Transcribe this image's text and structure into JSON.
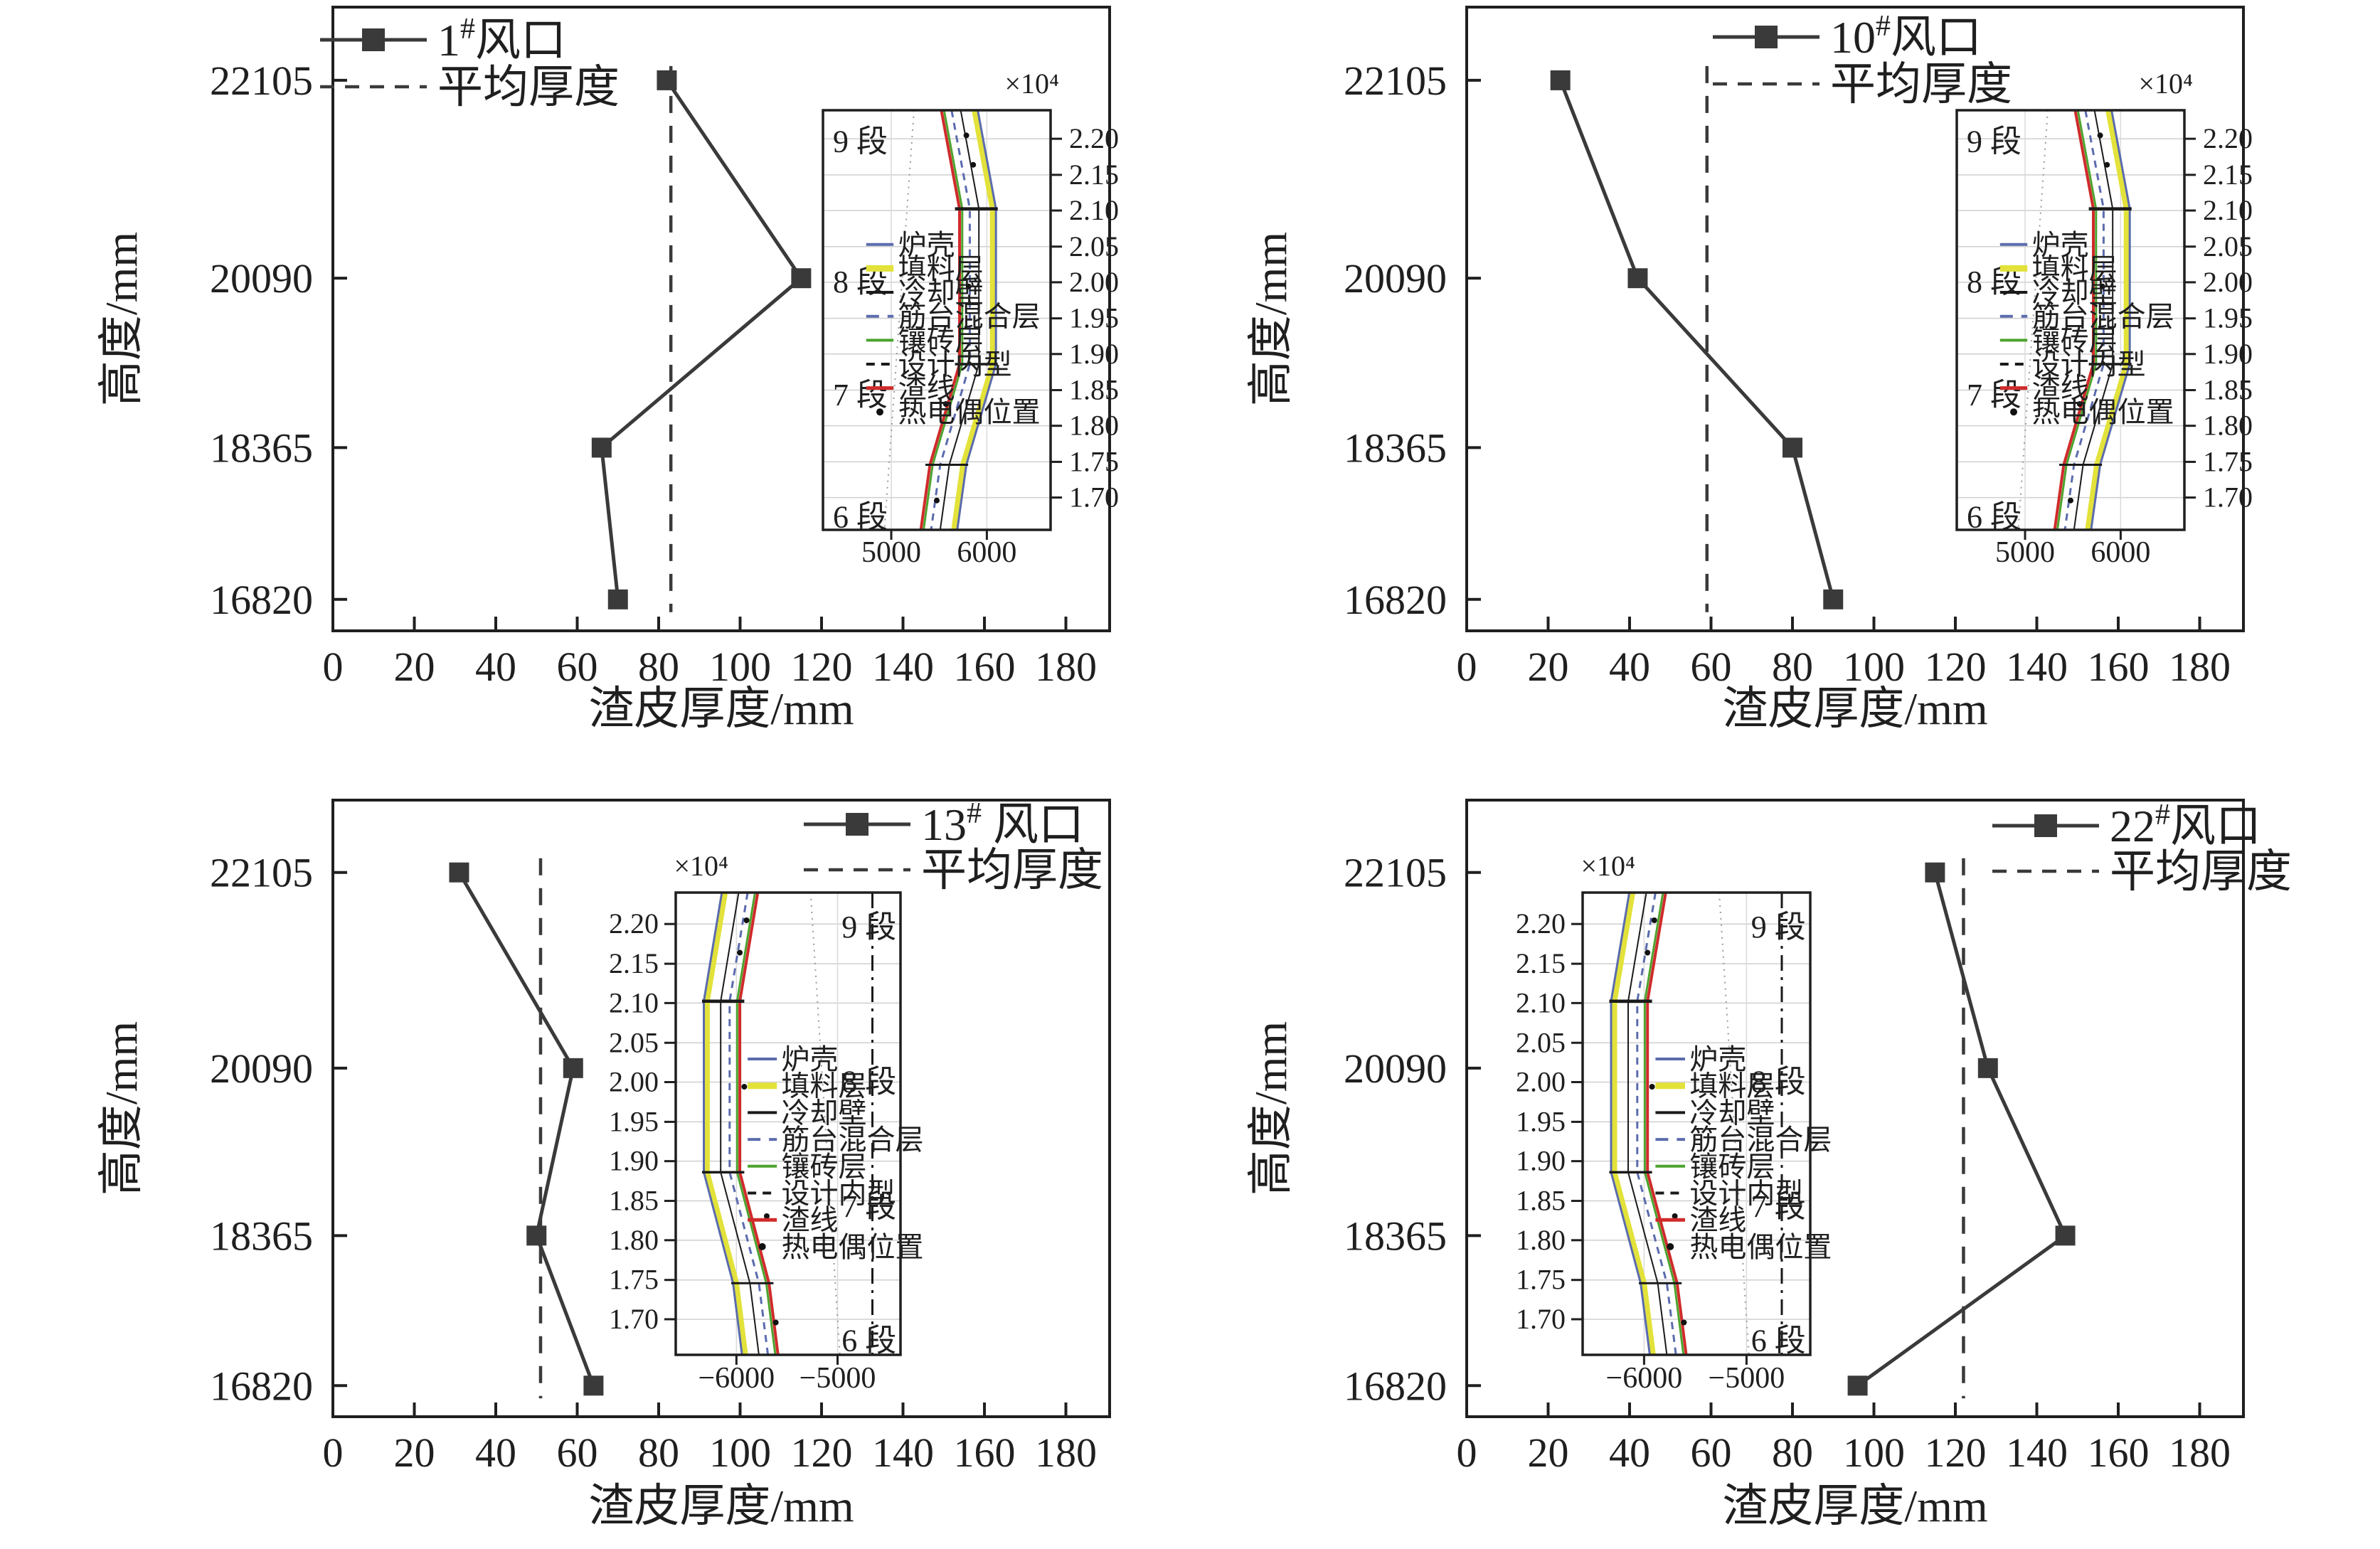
{
  "figure": {
    "background": "#ffffff",
    "ink": "#1f1f1f",
    "series_color": "#3a3a3a",
    "x_title": "渣皮厚度/mm",
    "y_title": "高度/mm",
    "x_tick_labels": [
      "0",
      "20",
      "40",
      "60",
      "80",
      "100",
      "120",
      "140",
      "160",
      "180"
    ],
    "y_tick_labels": [
      "22105",
      "20090",
      "18365",
      "16820"
    ]
  },
  "chart_data": [
    {
      "type": "line",
      "title": "1#风口",
      "series_label": {
        "base": "1",
        "sup": "#",
        "rest": "风口"
      },
      "avg_label": "平均厚度",
      "xlabel": "渣皮厚度/mm",
      "ylabel": "高度/mm",
      "categories_height_mm": [
        22105,
        20090,
        18365,
        16820
      ],
      "values_thickness_mm": [
        82,
        115,
        66,
        70
      ],
      "average_thickness_mm": 83,
      "xlim": [
        0,
        190
      ],
      "ylim": [
        16500,
        22850
      ],
      "legend_position": "top-left",
      "inset_x_tick_labels": [
        "5000",
        "6000"
      ]
    },
    {
      "type": "line",
      "title": "10#风口",
      "series_label": {
        "base": "10",
        "sup": "#",
        "rest": "风口"
      },
      "avg_label": "平均厚度",
      "xlabel": "渣皮厚度/mm",
      "ylabel": "高度/mm",
      "categories_height_mm": [
        22105,
        20090,
        18365,
        16820
      ],
      "values_thickness_mm": [
        23,
        42,
        80,
        90
      ],
      "average_thickness_mm": 59,
      "xlim": [
        0,
        190
      ],
      "ylim": [
        16500,
        22850
      ],
      "legend_position": "top-right",
      "inset_x_tick_labels": [
        "5000",
        "6000"
      ]
    },
    {
      "type": "line",
      "title": "13# 风口",
      "series_label": {
        "base": "13",
        "sup": "#",
        "rest": " 风口"
      },
      "avg_label": "平均厚度",
      "xlabel": "渣皮厚度/mm",
      "ylabel": "高度/mm",
      "categories_height_mm": [
        22105,
        20090,
        18365,
        16820
      ],
      "values_thickness_mm": [
        31,
        59,
        50,
        64
      ],
      "average_thickness_mm": 51,
      "xlim": [
        0,
        190
      ],
      "ylim": [
        16500,
        22850
      ],
      "legend_position": "top-right",
      "inset_x_tick_labels": [
        "−6000",
        "−5000"
      ]
    },
    {
      "type": "line",
      "title": "22#风口",
      "series_label": {
        "base": "22",
        "sup": "#",
        "rest": "风口"
      },
      "avg_label": "平均厚度",
      "xlabel": "渣皮厚度/mm",
      "ylabel": "高度/mm",
      "categories_height_mm": [
        22105,
        20090,
        18365,
        16820
      ],
      "values_thickness_mm": [
        115,
        128,
        147,
        96
      ],
      "average_thickness_mm": 122,
      "xlim": [
        0,
        190
      ],
      "ylim": [
        16500,
        22850
      ],
      "legend_position": "top-right",
      "inset_x_tick_labels": [
        "−6000",
        "−5000"
      ]
    }
  ],
  "inset_common": {
    "scale_label": "×10⁴",
    "y_tick_labels": [
      "2.20",
      "2.15",
      "2.10",
      "2.05",
      "2.00",
      "1.95",
      "1.90",
      "1.85",
      "1.80",
      "1.75",
      "1.70"
    ],
    "segment_labels": [
      "9 段",
      "8 段",
      "7 段",
      "6 段"
    ],
    "legend": [
      {
        "label": "炉壳",
        "color": "#5b6bae",
        "style": "solid",
        "width": 3
      },
      {
        "label": "填料层",
        "color": "#e2e23a",
        "style": "solid",
        "width": 8
      },
      {
        "label": "冷却壁",
        "color": "#1a1a1a",
        "style": "solid",
        "width": 3
      },
      {
        "label": "筋台混合层",
        "color": "#5b6bae",
        "style": "dashed",
        "width": 3
      },
      {
        "label": "镶砖层",
        "color": "#4ca32e",
        "style": "solid",
        "width": 3
      },
      {
        "label": "设计内型",
        "color": "#1a1a1a",
        "style": "dashed",
        "width": 3
      },
      {
        "label": "渣线",
        "color": "#cf2b2b",
        "style": "solid",
        "width": 4
      },
      {
        "label": "热电偶位置",
        "color": "#111111",
        "style": "dot",
        "width": 0
      }
    ]
  }
}
